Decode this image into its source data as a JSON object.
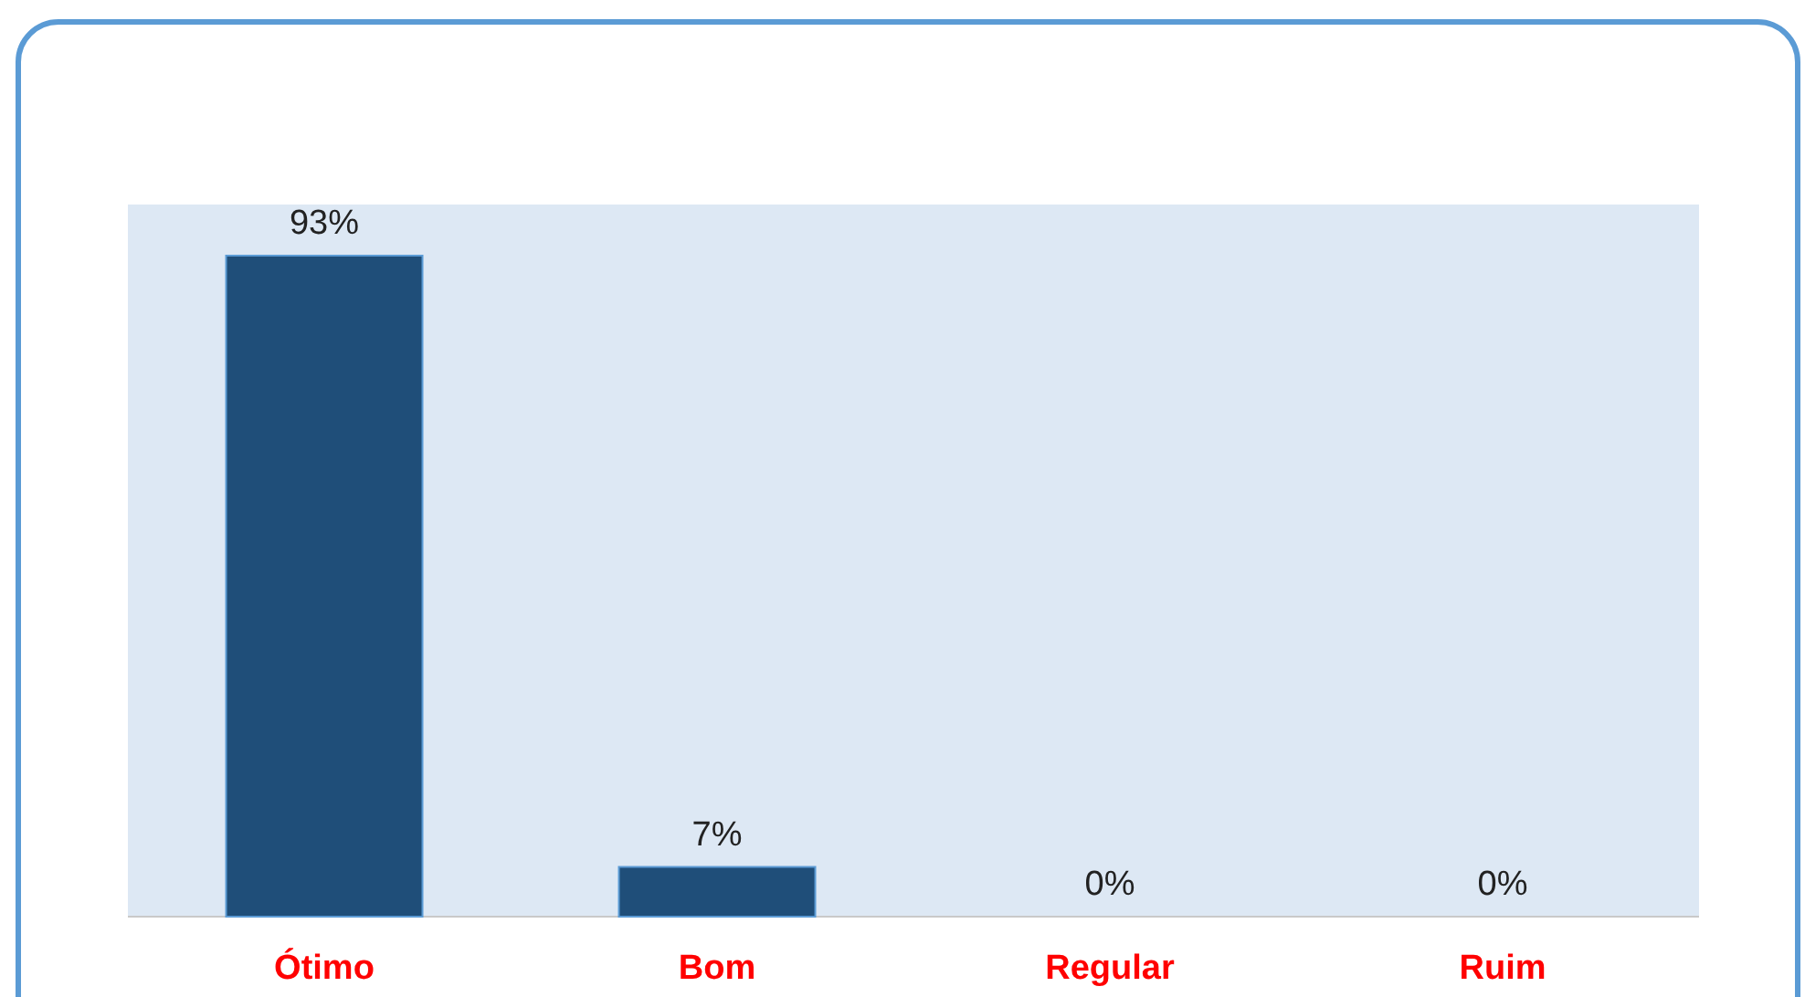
{
  "chart_data": {
    "type": "bar",
    "categories": [
      "Ótimo",
      "Bom",
      "Regular",
      "Ruim"
    ],
    "values": [
      93,
      7,
      0,
      0
    ],
    "value_labels": [
      "93%",
      "7%",
      "0%",
      "0%"
    ],
    "color": "#1f4e79",
    "tick_labels": "x"
  }
}
